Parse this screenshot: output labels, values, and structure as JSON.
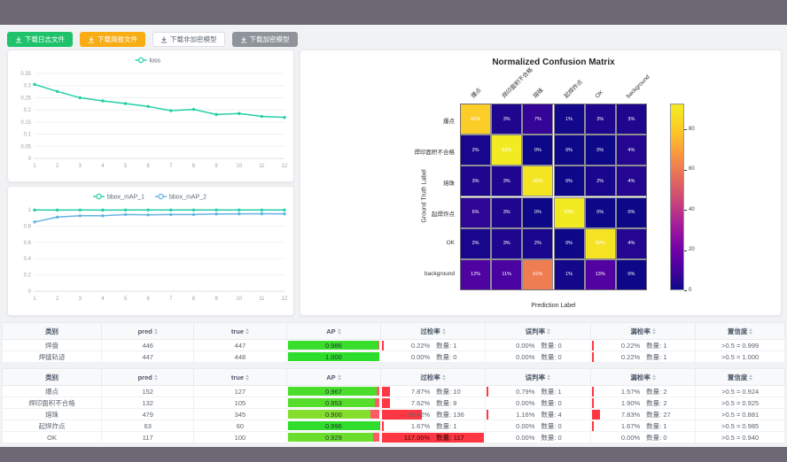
{
  "toolbar": {
    "buttons": [
      {
        "id": "download-log",
        "label": "下载日志文件",
        "variant": "success"
      },
      {
        "id": "download-report",
        "label": "下载简报文件",
        "variant": "warning"
      },
      {
        "id": "download-plain-model",
        "label": "下载非加密模型",
        "variant": "default"
      },
      {
        "id": "download-encrypted-model",
        "label": "下载加密模型",
        "variant": "info"
      }
    ]
  },
  "colors": {
    "accent_teal": "#23cfa7",
    "accent_blue": "#63b4e4",
    "button_green": "#1ec26a",
    "button_orange": "#f9ad14",
    "button_gray": "#8f949b",
    "band_gray": "#6d6874",
    "rate_bar_red": "#ff3742",
    "ap_remainder_red": "#ff5a66"
  },
  "chart_data": [
    {
      "type": "line",
      "title": "",
      "legend_position": "top",
      "x": [
        1,
        2,
        3,
        4,
        5,
        6,
        7,
        8,
        9,
        10,
        11,
        12
      ],
      "series": [
        {
          "name": "loss",
          "color": "#23cfa7",
          "values": [
            0.305,
            0.276,
            0.25,
            0.237,
            0.226,
            0.214,
            0.197,
            0.202,
            0.181,
            0.185,
            0.173,
            0.169
          ]
        }
      ],
      "ylim": [
        0,
        0.35
      ],
      "yticks": [
        0,
        0.05,
        0.1,
        0.15,
        0.2,
        0.25,
        0.3,
        0.35
      ],
      "grid": true
    },
    {
      "type": "line",
      "title": "",
      "legend_position": "top",
      "x": [
        1,
        2,
        3,
        4,
        5,
        6,
        7,
        8,
        9,
        10,
        11,
        12
      ],
      "series": [
        {
          "name": "bbox_mAP_1",
          "color": "#23cfa7",
          "values": [
            0.997,
            0.996,
            0.997,
            0.996,
            0.997,
            0.997,
            0.997,
            0.997,
            0.997,
            0.997,
            0.997,
            0.997
          ]
        },
        {
          "name": "bbox_mAP_2",
          "color": "#63b4e4",
          "values": [
            0.85,
            0.91,
            0.926,
            0.926,
            0.941,
            0.937,
            0.941,
            0.941,
            0.948,
            0.95,
            0.951,
            0.95
          ]
        }
      ],
      "ylim": [
        0,
        1
      ],
      "yticks": [
        0,
        0.2,
        0.4,
        0.6,
        0.8,
        1
      ],
      "grid": true
    },
    {
      "type": "heatmap",
      "title": "Normalized Confusion Matrix",
      "xlabel": "Prediction Label",
      "ylabel": "Ground Truth Label",
      "labels": [
        "爆点",
        "焊印面积不合格",
        "熔珠",
        "起焊炸点",
        "OK",
        "background"
      ],
      "matrix_percent": [
        [
          81,
          3,
          7,
          1,
          3,
          3
        ],
        [
          2,
          93,
          0,
          0,
          0,
          4
        ],
        [
          3,
          3,
          90,
          0,
          2,
          4
        ],
        [
          6,
          3,
          0,
          93,
          0,
          0
        ],
        [
          2,
          3,
          2,
          0,
          89,
          4
        ],
        [
          12,
          11,
          61,
          1,
          13,
          0
        ]
      ],
      "colorbar_ticks": [
        0,
        20,
        40,
        60,
        80
      ],
      "vmax": 93,
      "colormap": "plasma"
    }
  ],
  "tables": {
    "headers": [
      {
        "key": "class",
        "label": "类别",
        "sortable": false
      },
      {
        "key": "pred",
        "label": "pred",
        "sortable": true
      },
      {
        "key": "true",
        "label": "true",
        "sortable": true
      },
      {
        "key": "ap",
        "label": "AP",
        "sortable": true
      },
      {
        "key": "over",
        "label": "过检率",
        "sortable": true
      },
      {
        "key": "mis",
        "label": "误判率",
        "sortable": true
      },
      {
        "key": "miss",
        "label": "漏检率",
        "sortable": true
      },
      {
        "key": "conf",
        "label": "置信度",
        "sortable": true
      }
    ],
    "count_prefix": "数量",
    "groups": [
      {
        "rows": [
          {
            "class": "焊盘",
            "pred": "446",
            "true": "447",
            "ap": 0.986,
            "over": {
              "pct": 0.22,
              "count": 1
            },
            "mis": {
              "pct": 0.0,
              "count": 0
            },
            "miss": {
              "pct": 0.22,
              "count": 1
            },
            "conf": ">0.5 = 0.999"
          },
          {
            "class": "焊缝轨迹",
            "pred": "447",
            "true": "448",
            "ap": 1.0,
            "over": {
              "pct": 0.0,
              "count": 0
            },
            "mis": {
              "pct": 0.0,
              "count": 0
            },
            "miss": {
              "pct": 0.22,
              "count": 1
            },
            "conf": ">0.5 = 1.000"
          }
        ]
      },
      {
        "rows": [
          {
            "class": "爆点",
            "pred": "152",
            "true": "127",
            "ap": 0.967,
            "over": {
              "pct": 7.87,
              "count": 10
            },
            "mis": {
              "pct": 0.79,
              "count": 1
            },
            "miss": {
              "pct": 1.57,
              "count": 2
            },
            "conf": ">0.5 = 0.924"
          },
          {
            "class": "焊印面积不合格",
            "pred": "132",
            "true": "105",
            "ap": 0.953,
            "over": {
              "pct": 7.62,
              "count": 8
            },
            "mis": {
              "pct": 0.0,
              "count": 0
            },
            "miss": {
              "pct": 1.9,
              "count": 2
            },
            "conf": ">0.5 = 0.925"
          },
          {
            "class": "熔珠",
            "pred": "479",
            "true": "345",
            "ap": 0.9,
            "over": {
              "pct": 39.42,
              "count": 136
            },
            "mis": {
              "pct": 1.16,
              "count": 4
            },
            "miss": {
              "pct": 7.83,
              "count": 27
            },
            "conf": ">0.5 = 0.881"
          },
          {
            "class": "起焊炸点",
            "pred": "63",
            "true": "60",
            "ap": 0.996,
            "over": {
              "pct": 1.67,
              "count": 1
            },
            "mis": {
              "pct": 0.0,
              "count": 0
            },
            "miss": {
              "pct": 1.67,
              "count": 1
            },
            "conf": ">0.5 = 0.985"
          },
          {
            "class": "OK",
            "pred": "117",
            "true": "100",
            "ap": 0.929,
            "over": {
              "pct": 117.0,
              "count": 117
            },
            "mis": {
              "pct": 0.0,
              "count": 0
            },
            "miss": {
              "pct": 0.0,
              "count": 0
            },
            "conf": ">0.5 = 0.940"
          }
        ]
      }
    ]
  }
}
